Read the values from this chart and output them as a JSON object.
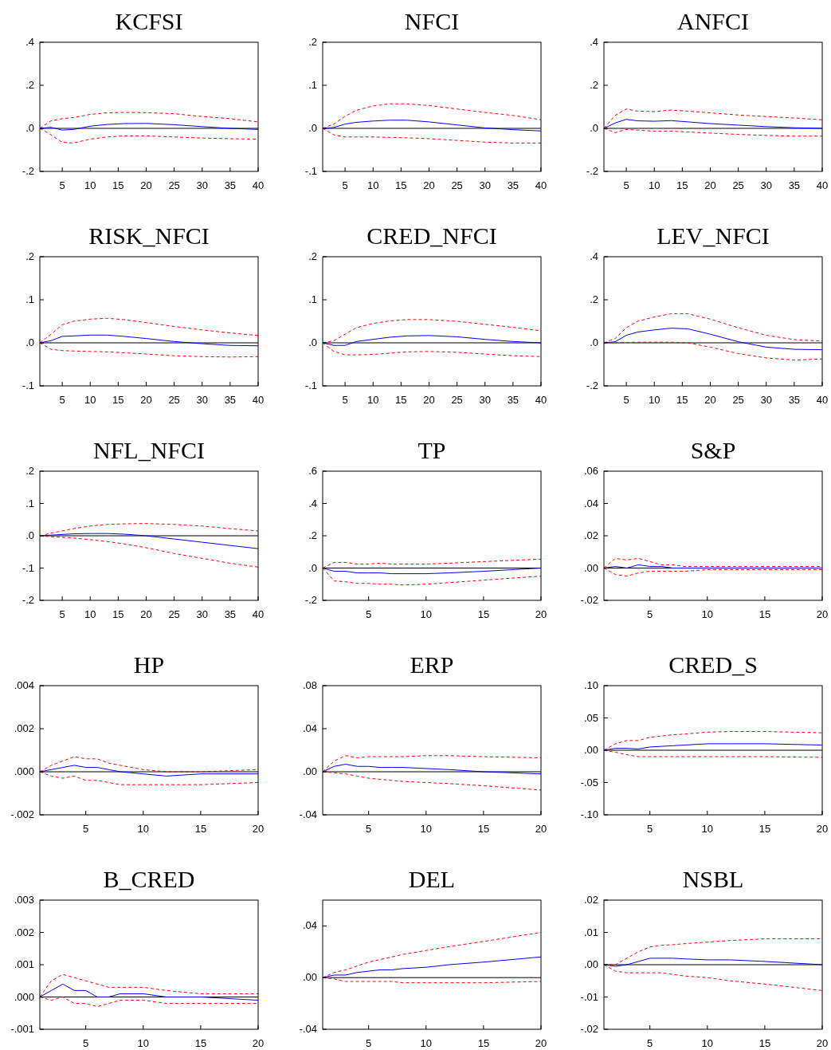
{
  "chart_data": [
    {
      "type": "line",
      "title": "KCFSI",
      "x": [
        1,
        3,
        5,
        7,
        10,
        13,
        16,
        20,
        25,
        30,
        35,
        40
      ],
      "xlim": [
        1,
        40
      ],
      "xticks": [
        5,
        10,
        15,
        20,
        25,
        30,
        35,
        40
      ],
      "ylim": [
        -0.2,
        0.4
      ],
      "yticks": [
        {
          "value": -0.2,
          "label": "-.2"
        },
        {
          "value": 0,
          "label": ".0"
        },
        {
          "value": 0.2,
          "label": ".2"
        },
        {
          "value": 0.4,
          "label": ".4"
        }
      ],
      "ref_lines": [
        {
          "axis": "y",
          "value": 0,
          "color": "#000000"
        }
      ],
      "series": [
        {
          "color": "#0000ff",
          "line_style": "solid",
          "values": [
            0,
            0.005,
            -0.008,
            -0.005,
            0.01,
            0.018,
            0.022,
            0.023,
            0.017,
            0.008,
            0,
            -0.005
          ]
        },
        {
          "color": "#ff0000",
          "line_style": "dashed",
          "values": [
            0,
            0.035,
            0.045,
            0.05,
            0.065,
            0.072,
            0.074,
            0.073,
            0.068,
            0.055,
            0.045,
            0.03
          ]
        },
        {
          "color": "#ff0000",
          "line_style": "dashed",
          "values": [
            0,
            -0.03,
            -0.065,
            -0.068,
            -0.05,
            -0.04,
            -0.035,
            -0.035,
            -0.04,
            -0.045,
            -0.048,
            -0.05
          ]
        }
      ]
    },
    {
      "type": "line",
      "title": "NFCI",
      "x": [
        1,
        3,
        5,
        7,
        10,
        13,
        16,
        20,
        25,
        30,
        35,
        40
      ],
      "xlim": [
        1,
        40
      ],
      "xticks": [
        5,
        10,
        15,
        20,
        25,
        30,
        35,
        40
      ],
      "ylim": [
        -0.1,
        0.2
      ],
      "yticks": [
        {
          "value": -0.1,
          "label": "-.1"
        },
        {
          "value": 0,
          "label": ".0"
        },
        {
          "value": 0.1,
          "label": ".1"
        },
        {
          "value": 0.2,
          "label": ".2"
        }
      ],
      "ref_lines": [
        {
          "axis": "y",
          "value": 0,
          "color": "#000000"
        }
      ],
      "series": [
        {
          "color": "#0000ff",
          "line_style": "solid",
          "values": [
            0,
            0.002,
            0.01,
            0.014,
            0.017,
            0.019,
            0.019,
            0.015,
            0.008,
            0.001,
            -0.003,
            -0.006
          ]
        },
        {
          "color": "#ff0000",
          "line_style": "dashed",
          "values": [
            0,
            0.01,
            0.028,
            0.042,
            0.052,
            0.057,
            0.057,
            0.053,
            0.045,
            0.037,
            0.03,
            0.02
          ]
        },
        {
          "color": "#ff0000",
          "line_style": "dashed",
          "values": [
            0,
            -0.015,
            -0.02,
            -0.02,
            -0.02,
            -0.021,
            -0.022,
            -0.024,
            -0.028,
            -0.032,
            -0.034,
            -0.034
          ]
        }
      ]
    },
    {
      "type": "line",
      "title": "ANFCI",
      "x": [
        1,
        3,
        5,
        7,
        10,
        13,
        16,
        20,
        25,
        30,
        35,
        40
      ],
      "xlim": [
        1,
        40
      ],
      "xticks": [
        5,
        10,
        15,
        20,
        25,
        30,
        35,
        40
      ],
      "ylim": [
        -0.2,
        0.4
      ],
      "yticks": [
        {
          "value": -0.2,
          "label": "-.2"
        },
        {
          "value": 0,
          "label": ".0"
        },
        {
          "value": 0.2,
          "label": ".2"
        },
        {
          "value": 0.4,
          "label": ".4"
        }
      ],
      "ref_lines": [
        {
          "axis": "y",
          "value": 0,
          "color": "#000000"
        }
      ],
      "series": [
        {
          "color": "#0000ff",
          "line_style": "solid",
          "values": [
            0,
            0.025,
            0.042,
            0.035,
            0.033,
            0.036,
            0.03,
            0.022,
            0.015,
            0.008,
            0.003,
            0
          ]
        },
        {
          "color": "#ff0000",
          "line_style": "dashed",
          "values": [
            0,
            0.06,
            0.09,
            0.08,
            0.078,
            0.085,
            0.08,
            0.072,
            0.062,
            0.055,
            0.048,
            0.04
          ]
        },
        {
          "color": "#ff0000",
          "line_style": "dashed",
          "values": [
            0,
            -0.02,
            -0.005,
            -0.008,
            -0.013,
            -0.013,
            -0.017,
            -0.022,
            -0.028,
            -0.033,
            -0.036,
            -0.036
          ]
        }
      ]
    },
    {
      "type": "line",
      "title": "RISK_NFCI",
      "x": [
        1,
        3,
        5,
        7,
        10,
        13,
        16,
        20,
        25,
        30,
        35,
        40
      ],
      "xlim": [
        1,
        40
      ],
      "xticks": [
        5,
        10,
        15,
        20,
        25,
        30,
        35,
        40
      ],
      "ylim": [
        -0.1,
        0.2
      ],
      "yticks": [
        {
          "value": -0.1,
          "label": "-.1"
        },
        {
          "value": 0,
          "label": ".0"
        },
        {
          "value": 0.1,
          "label": ".1"
        },
        {
          "value": 0.2,
          "label": ".2"
        }
      ],
      "ref_lines": [
        {
          "axis": "y",
          "value": 0,
          "color": "#000000"
        }
      ],
      "series": [
        {
          "color": "#0000ff",
          "line_style": "solid",
          "values": [
            0,
            0.005,
            0.015,
            0.016,
            0.018,
            0.018,
            0.015,
            0.01,
            0.003,
            -0.002,
            -0.006,
            -0.007
          ]
        },
        {
          "color": "#ff0000",
          "line_style": "dashed",
          "values": [
            0,
            0.02,
            0.042,
            0.05,
            0.055,
            0.057,
            0.054,
            0.047,
            0.038,
            0.03,
            0.023,
            0.017
          ]
        },
        {
          "color": "#ff0000",
          "line_style": "dashed",
          "values": [
            0,
            -0.015,
            -0.018,
            -0.019,
            -0.02,
            -0.021,
            -0.023,
            -0.026,
            -0.03,
            -0.032,
            -0.033,
            -0.032
          ]
        }
      ]
    },
    {
      "type": "line",
      "title": "CRED_NFCI",
      "x": [
        1,
        3,
        5,
        7,
        10,
        13,
        16,
        20,
        25,
        30,
        35,
        40
      ],
      "xlim": [
        1,
        40
      ],
      "xticks": [
        5,
        10,
        15,
        20,
        25,
        30,
        35,
        40
      ],
      "ylim": [
        -0.1,
        0.2
      ],
      "yticks": [
        {
          "value": -0.1,
          "label": "-.1"
        },
        {
          "value": 0,
          "label": ".0"
        },
        {
          "value": 0.1,
          "label": ".1"
        },
        {
          "value": 0.2,
          "label": ".2"
        }
      ],
      "ref_lines": [
        {
          "axis": "y",
          "value": 0,
          "color": "#000000"
        }
      ],
      "series": [
        {
          "color": "#0000ff",
          "line_style": "solid",
          "values": [
            0,
            -0.006,
            -0.006,
            0.003,
            0.008,
            0.013,
            0.016,
            0.017,
            0.014,
            0.008,
            0.003,
            0
          ]
        },
        {
          "color": "#ff0000",
          "line_style": "dashed",
          "values": [
            0,
            0.005,
            0.02,
            0.035,
            0.045,
            0.051,
            0.054,
            0.054,
            0.05,
            0.043,
            0.036,
            0.028
          ]
        },
        {
          "color": "#ff0000",
          "line_style": "dashed",
          "values": [
            0,
            -0.02,
            -0.028,
            -0.028,
            -0.027,
            -0.024,
            -0.021,
            -0.02,
            -0.022,
            -0.026,
            -0.03,
            -0.032
          ]
        }
      ]
    },
    {
      "type": "line",
      "title": "LEV_NFCI",
      "x": [
        1,
        3,
        5,
        7,
        10,
        13,
        16,
        20,
        25,
        30,
        35,
        40
      ],
      "xlim": [
        1,
        40
      ],
      "xticks": [
        5,
        10,
        15,
        20,
        25,
        30,
        35,
        40
      ],
      "ylim": [
        -0.2,
        0.4
      ],
      "yticks": [
        {
          "value": -0.2,
          "label": "-.2"
        },
        {
          "value": 0,
          "label": ".0"
        },
        {
          "value": 0.2,
          "label": ".2"
        },
        {
          "value": 0.4,
          "label": ".4"
        }
      ],
      "ref_lines": [
        {
          "axis": "y",
          "value": 0,
          "color": "#000000"
        }
      ],
      "series": [
        {
          "color": "#0000ff",
          "line_style": "solid",
          "values": [
            0,
            0.005,
            0.035,
            0.05,
            0.06,
            0.068,
            0.065,
            0.04,
            0.005,
            -0.02,
            -0.03,
            -0.032
          ]
        },
        {
          "color": "#ff0000",
          "line_style": "dashed",
          "values": [
            0,
            0.02,
            0.07,
            0.1,
            0.12,
            0.135,
            0.135,
            0.11,
            0.07,
            0.035,
            0.015,
            0.008
          ]
        },
        {
          "color": "#ff0000",
          "line_style": "dashed",
          "values": [
            0,
            0,
            0.002,
            0.003,
            0.003,
            0.003,
            0,
            -0.02,
            -0.05,
            -0.07,
            -0.08,
            -0.075
          ]
        }
      ]
    },
    {
      "type": "line",
      "title": "NFL_NFCI",
      "x": [
        1,
        3,
        5,
        7,
        10,
        13,
        16,
        20,
        25,
        30,
        35,
        40
      ],
      "xlim": [
        1,
        40
      ],
      "xticks": [
        5,
        10,
        15,
        20,
        25,
        30,
        35,
        40
      ],
      "ylim": [
        -0.2,
        0.2
      ],
      "yticks": [
        {
          "value": -0.2,
          "label": "-.2"
        },
        {
          "value": -0.1,
          "label": "-.1"
        },
        {
          "value": 0,
          "label": ".0"
        },
        {
          "value": 0.1,
          "label": ".1"
        },
        {
          "value": 0.2,
          "label": ".2"
        }
      ],
      "ref_lines": [
        {
          "axis": "y",
          "value": 0,
          "color": "#000000"
        }
      ],
      "series": [
        {
          "color": "#0000ff",
          "line_style": "solid",
          "values": [
            0,
            0.002,
            0.004,
            0.006,
            0.007,
            0.007,
            0.005,
            0,
            -0.01,
            -0.02,
            -0.03,
            -0.04
          ]
        },
        {
          "color": "#ff0000",
          "line_style": "dashed",
          "values": [
            0,
            0.008,
            0.015,
            0.022,
            0.03,
            0.035,
            0.037,
            0.038,
            0.035,
            0.03,
            0.022,
            0.015
          ]
        },
        {
          "color": "#ff0000",
          "line_style": "dashed",
          "values": [
            0,
            -0.003,
            -0.005,
            -0.007,
            -0.012,
            -0.018,
            -0.025,
            -0.037,
            -0.055,
            -0.07,
            -0.085,
            -0.097
          ]
        }
      ]
    },
    {
      "type": "line",
      "title": "TP",
      "x": [
        1,
        2,
        3,
        4,
        5,
        6,
        7,
        8,
        10,
        12,
        15,
        20
      ],
      "xlim": [
        1,
        20
      ],
      "xticks": [
        5,
        10,
        15,
        20
      ],
      "ylim": [
        -0.2,
        0.6
      ],
      "yticks": [
        {
          "value": -0.2,
          "label": "-.2"
        },
        {
          "value": 0,
          "label": ".0"
        },
        {
          "value": 0.2,
          "label": ".2"
        },
        {
          "value": 0.4,
          "label": ".4"
        },
        {
          "value": 0.6,
          "label": ".6"
        }
      ],
      "ref_lines": [
        {
          "axis": "y",
          "value": 0,
          "color": "#000000"
        }
      ],
      "series": [
        {
          "color": "#0000ff",
          "line_style": "solid",
          "values": [
            0,
            -0.02,
            -0.02,
            -0.03,
            -0.03,
            -0.03,
            -0.035,
            -0.035,
            -0.035,
            -0.03,
            -0.02,
            0
          ]
        },
        {
          "color": "#ff0000",
          "line_style": "dashed",
          "values": [
            0,
            0.035,
            0.035,
            0.025,
            0.025,
            0.03,
            0.025,
            0.025,
            0.025,
            0.03,
            0.04,
            0.055
          ]
        },
        {
          "color": "#ff0000",
          "line_style": "dashed",
          "values": [
            0,
            -0.08,
            -0.085,
            -0.095,
            -0.095,
            -0.1,
            -0.1,
            -0.105,
            -0.1,
            -0.09,
            -0.075,
            -0.05
          ]
        }
      ]
    },
    {
      "type": "line",
      "title": "S&P",
      "x": [
        1,
        2,
        3,
        4,
        5,
        6,
        7,
        8,
        10,
        12,
        15,
        20
      ],
      "xlim": [
        1,
        20
      ],
      "xticks": [
        5,
        10,
        15,
        20
      ],
      "ylim": [
        -0.02,
        0.06
      ],
      "yticks": [
        {
          "value": -0.02,
          "label": "-.02"
        },
        {
          "value": 0,
          "label": ".00"
        },
        {
          "value": 0.02,
          "label": ".02"
        },
        {
          "value": 0.04,
          "label": ".04"
        },
        {
          "value": 0.06,
          "label": ".06"
        }
      ],
      "ref_lines": [
        {
          "axis": "y",
          "value": 0,
          "color": "#000000"
        }
      ],
      "series": [
        {
          "color": "#0000ff",
          "line_style": "solid",
          "values": [
            0,
            0.001,
            0,
            0.002,
            0.001,
            0.001,
            0,
            0,
            0,
            0,
            0,
            0
          ]
        },
        {
          "color": "#ff0000",
          "line_style": "dashed",
          "values": [
            0,
            0.006,
            0.005,
            0.006,
            0.004,
            0.002,
            0.002,
            0.001,
            0.001,
            0.001,
            0.001,
            0.001
          ]
        },
        {
          "color": "#ff0000",
          "line_style": "dashed",
          "values": [
            0,
            -0.004,
            -0.005,
            -0.003,
            -0.002,
            -0.002,
            -0.002,
            -0.002,
            -0.001,
            -0.001,
            -0.001,
            -0.001
          ]
        }
      ]
    },
    {
      "type": "line",
      "title": "HP",
      "x": [
        1,
        2,
        3,
        4,
        5,
        6,
        7,
        8,
        10,
        12,
        15,
        20
      ],
      "xlim": [
        1,
        20
      ],
      "xticks": [
        5,
        10,
        15,
        20
      ],
      "ylim": [
        -0.002,
        0.004
      ],
      "yticks": [
        {
          "value": -0.002,
          "label": "-.002"
        },
        {
          "value": 0,
          "label": ".000"
        },
        {
          "value": 0.002,
          "label": ".002"
        },
        {
          "value": 0.004,
          "label": ".004"
        }
      ],
      "ref_lines": [
        {
          "axis": "y",
          "value": 0,
          "color": "#000000"
        }
      ],
      "series": [
        {
          "color": "#0000ff",
          "line_style": "solid",
          "values": [
            0,
            0.0001,
            0.0002,
            0.0003,
            0.0002,
            0.0002,
            0.0001,
            0,
            -0.0001,
            -0.0002,
            -0.0001,
            -0.0001
          ]
        },
        {
          "color": "#ff0000",
          "line_style": "dashed",
          "values": [
            0,
            0.0003,
            0.0005,
            0.0007,
            0.0006,
            0.0006,
            0.0004,
            0.0003,
            0.0001,
            0,
            0,
            0.0001
          ]
        },
        {
          "color": "#ff0000",
          "line_style": "dashed",
          "values": [
            0,
            -0.0002,
            -0.0003,
            -0.0002,
            -0.0004,
            -0.0004,
            -0.0005,
            -0.0006,
            -0.0006,
            -0.0006,
            -0.0006,
            -0.0005
          ]
        }
      ]
    },
    {
      "type": "line",
      "title": "ERP",
      "x": [
        1,
        2,
        3,
        4,
        5,
        6,
        7,
        8,
        10,
        12,
        15,
        20
      ],
      "xlim": [
        1,
        20
      ],
      "xticks": [
        5,
        10,
        15,
        20
      ],
      "ylim": [
        -0.04,
        0.08
      ],
      "yticks": [
        {
          "value": -0.04,
          "label": "-.04"
        },
        {
          "value": 0,
          "label": ".00"
        },
        {
          "value": 0.04,
          "label": ".04"
        },
        {
          "value": 0.08,
          "label": ".08"
        }
      ],
      "ref_lines": [
        {
          "axis": "y",
          "value": 0,
          "color": "#000000"
        }
      ],
      "series": [
        {
          "color": "#0000ff",
          "line_style": "solid",
          "values": [
            0,
            0.005,
            0.007,
            0.005,
            0.005,
            0.004,
            0.004,
            0.004,
            0.003,
            0.002,
            0,
            -0.002
          ]
        },
        {
          "color": "#ff0000",
          "line_style": "dashed",
          "values": [
            0,
            0.01,
            0.015,
            0.013,
            0.014,
            0.014,
            0.014,
            0.014,
            0.015,
            0.015,
            0.014,
            0.013
          ]
        },
        {
          "color": "#ff0000",
          "line_style": "dashed",
          "values": [
            0,
            -0.001,
            -0.002,
            -0.004,
            -0.006,
            -0.007,
            -0.008,
            -0.009,
            -0.01,
            -0.011,
            -0.013,
            -0.017
          ]
        }
      ]
    },
    {
      "type": "line",
      "title": "CRED_S",
      "x": [
        1,
        2,
        3,
        4,
        5,
        6,
        7,
        8,
        10,
        12,
        15,
        20
      ],
      "xlim": [
        1,
        20
      ],
      "xticks": [
        5,
        10,
        15,
        20
      ],
      "ylim": [
        -0.1,
        0.1
      ],
      "yticks": [
        {
          "value": -0.1,
          "label": "-.10"
        },
        {
          "value": -0.05,
          "label": "-.05"
        },
        {
          "value": 0,
          "label": ".00"
        },
        {
          "value": 0.05,
          "label": ".05"
        },
        {
          "value": 0.1,
          "label": ".10"
        }
      ],
      "ref_lines": [
        {
          "axis": "y",
          "value": 0,
          "color": "#000000"
        }
      ],
      "series": [
        {
          "color": "#0000ff",
          "line_style": "solid",
          "values": [
            0,
            0.003,
            0.003,
            0.002,
            0.005,
            0.006,
            0.007,
            0.008,
            0.01,
            0.01,
            0.01,
            0.008
          ]
        },
        {
          "color": "#ff0000",
          "line_style": "dashed",
          "values": [
            0,
            0.01,
            0.015,
            0.015,
            0.02,
            0.022,
            0.024,
            0.025,
            0.028,
            0.029,
            0.029,
            0.027
          ]
        },
        {
          "color": "#ff0000",
          "line_style": "dashed",
          "values": [
            0,
            -0.003,
            -0.007,
            -0.01,
            -0.01,
            -0.01,
            -0.01,
            -0.01,
            -0.01,
            -0.01,
            -0.01,
            -0.011
          ]
        }
      ]
    },
    {
      "type": "line",
      "title": "B_CRED",
      "x": [
        1,
        2,
        3,
        4,
        5,
        6,
        7,
        8,
        10,
        12,
        15,
        20
      ],
      "xlim": [
        1,
        20
      ],
      "xticks": [
        5,
        10,
        15,
        20
      ],
      "ylim": [
        -0.001,
        0.003
      ],
      "yticks": [
        {
          "value": -0.001,
          "label": "-.001"
        },
        {
          "value": 0,
          "label": ".000"
        },
        {
          "value": 0.001,
          "label": ".001"
        },
        {
          "value": 0.002,
          "label": ".002"
        },
        {
          "value": 0.003,
          "label": ".003"
        }
      ],
      "ref_lines": [
        {
          "axis": "y",
          "value": 0,
          "color": "#000000"
        }
      ],
      "series": [
        {
          "color": "#0000ff",
          "line_style": "solid",
          "values": [
            0,
            0.0002,
            0.0004,
            0.0002,
            0.0002,
            0,
            0,
            0.0001,
            0.0001,
            0,
            0,
            -0.0001
          ]
        },
        {
          "color": "#ff0000",
          "line_style": "dashed",
          "values": [
            0,
            0.0005,
            0.0007,
            0.0006,
            0.0005,
            0.0004,
            0.0003,
            0.0003,
            0.0003,
            0.0002,
            0.0001,
            0.0001
          ]
        },
        {
          "color": "#ff0000",
          "line_style": "dashed",
          "values": [
            0,
            -0.0001,
            0,
            -0.0002,
            -0.0002,
            -0.0003,
            -0.0002,
            -0.0001,
            -0.0001,
            -0.0002,
            -0.0002,
            -0.0002
          ]
        }
      ]
    },
    {
      "type": "line",
      "title": "DEL",
      "x": [
        1,
        2,
        3,
        4,
        5,
        6,
        7,
        8,
        10,
        12,
        15,
        20
      ],
      "xlim": [
        1,
        20
      ],
      "xticks": [
        5,
        10,
        15,
        20
      ],
      "ylim": [
        -0.04,
        0.06
      ],
      "yticks": [
        {
          "value": -0.04,
          "label": "-.04"
        },
        {
          "value": 0,
          "label": ".00"
        },
        {
          "value": 0.04,
          "label": ".04"
        }
      ],
      "ref_lines": [
        {
          "axis": "y",
          "value": 0,
          "color": "#000000"
        }
      ],
      "series": [
        {
          "color": "#0000ff",
          "line_style": "solid",
          "values": [
            0,
            0.002,
            0.002,
            0.004,
            0.005,
            0.006,
            0.006,
            0.007,
            0.008,
            0.01,
            0.012,
            0.016
          ]
        },
        {
          "color": "#ff0000",
          "line_style": "dashed",
          "values": [
            0,
            0.004,
            0.006,
            0.009,
            0.012,
            0.014,
            0.016,
            0.018,
            0.021,
            0.024,
            0.028,
            0.035
          ]
        },
        {
          "color": "#ff0000",
          "line_style": "dashed",
          "values": [
            0,
            -0.001,
            -0.003,
            -0.003,
            -0.003,
            -0.003,
            -0.003,
            -0.004,
            -0.004,
            -0.004,
            -0.004,
            -0.003
          ]
        }
      ]
    },
    {
      "type": "line",
      "title": "NSBL",
      "x": [
        1,
        2,
        3,
        4,
        5,
        6,
        7,
        8,
        10,
        12,
        15,
        20
      ],
      "xlim": [
        1,
        20
      ],
      "xticks": [
        5,
        10,
        15,
        20
      ],
      "ylim": [
        -0.02,
        0.02
      ],
      "yticks": [
        {
          "value": -0.02,
          "label": "-.02"
        },
        {
          "value": -0.01,
          "label": "-.01"
        },
        {
          "value": 0,
          "label": ".00"
        },
        {
          "value": 0.01,
          "label": ".01"
        },
        {
          "value": 0.02,
          "label": ".02"
        }
      ],
      "ref_lines": [
        {
          "axis": "y",
          "value": 0,
          "color": "#000000"
        }
      ],
      "series": [
        {
          "color": "#0000ff",
          "line_style": "solid",
          "values": [
            0,
            -0.0005,
            0,
            0.001,
            0.002,
            0.002,
            0.002,
            0.0018,
            0.0015,
            0.0015,
            0.001,
            0
          ]
        },
        {
          "color": "#ff0000",
          "line_style": "dashed",
          "values": [
            0,
            0,
            0.002,
            0.004,
            0.0055,
            0.006,
            0.0062,
            0.0065,
            0.007,
            0.0075,
            0.008,
            0.008
          ]
        },
        {
          "color": "#ff0000",
          "line_style": "dashed",
          "values": [
            0,
            -0.002,
            -0.0025,
            -0.0025,
            -0.0025,
            -0.0025,
            -0.003,
            -0.0035,
            -0.004,
            -0.005,
            -0.006,
            -0.008
          ]
        }
      ]
    }
  ]
}
